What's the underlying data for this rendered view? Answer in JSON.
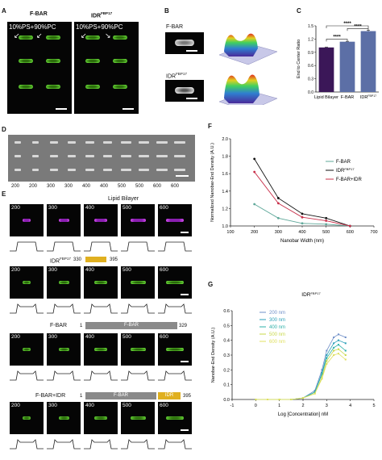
{
  "panels": {
    "A": "A",
    "B": "B",
    "C": "C",
    "D": "D",
    "E": "E",
    "F": "F",
    "G": "G"
  },
  "panelA": {
    "title_left": "F-BAR",
    "title_right": "IDR",
    "title_right_sup": "FBP17",
    "overlay_text": "10%PS+90%PC"
  },
  "panelB": {
    "label_top": "F-BAR",
    "label_bottom": "IDR",
    "label_bottom_sup": "FBP17"
  },
  "panelD": {
    "widths": [
      "200",
      "200",
      "300",
      "300",
      "400",
      "400",
      "500",
      "500",
      "600",
      "600"
    ]
  },
  "panelE": {
    "lipid_title": "Lipid Bilayer",
    "widths": [
      "200",
      "300",
      "400",
      "500",
      "600"
    ],
    "idr_label": "IDR",
    "idr_sup": "FBP17",
    "idr_start": "330",
    "idr_end": "395",
    "fbar_label": "F-BAR",
    "fbar_start": "1",
    "fbar_domain": "F-BAR",
    "fbar_end": "329",
    "combo_label": "F-BAR+IDR",
    "combo_start": "1",
    "combo_domain_fbar": "F-BAR",
    "combo_domain_idr": "IDR",
    "combo_end": "395"
  },
  "chart_data": [
    {
      "panel": "C",
      "type": "bar",
      "ylabel": "End to Center Ratio",
      "ylim": [
        0,
        1.5
      ],
      "yticks": [
        "0.0",
        "0.3",
        "0.6",
        "0.9",
        "1.2",
        "1.5"
      ],
      "categories": [
        "Lipid Bilayer",
        "F-BAR",
        "IDR"
      ],
      "category_sup": [
        "",
        "",
        "FBP17"
      ],
      "values": [
        1.01,
        1.14,
        1.38
      ],
      "errors": [
        0.01,
        0.01,
        0.02
      ],
      "colors": [
        "#3b1758",
        "#5c6fa6",
        "#5c6fa6"
      ],
      "significance": [
        "****",
        "****",
        "****"
      ]
    },
    {
      "panel": "F",
      "type": "line",
      "xlabel": "Nanobar Width (nm)",
      "ylabel": "Normalized Nanobar-End Density (A.U.)",
      "xlim": [
        100,
        700
      ],
      "ylim": [
        1.0,
        2.0
      ],
      "xticks": [
        "100",
        "200",
        "300",
        "400",
        "500",
        "600",
        "700"
      ],
      "yticks": [
        "1.0",
        "1.2",
        "1.4",
        "1.6",
        "1.8",
        "2.0"
      ],
      "x": [
        200,
        300,
        400,
        500,
        600
      ],
      "legend_position": "right",
      "series": [
        {
          "name": "F-BAR",
          "sup": "",
          "color": "#5fa89a",
          "values": [
            1.25,
            1.09,
            1.03,
            1.02,
            1.0
          ]
        },
        {
          "name": "IDR",
          "sup": "FBP17",
          "color": "#111111",
          "values": [
            1.77,
            1.32,
            1.14,
            1.09,
            1.0
          ]
        },
        {
          "name": "F-BAR+IDR",
          "sup": "",
          "color": "#c8304a",
          "values": [
            1.62,
            1.26,
            1.1,
            1.06,
            1.0
          ]
        }
      ]
    },
    {
      "panel": "G",
      "type": "line",
      "title": "IDR",
      "title_sup": "FBP17",
      "xlabel": "Log [Concentration] nM",
      "ylabel": "Nanobar-End Density (A.U.)",
      "xlim": [
        -1,
        5
      ],
      "ylim": [
        0,
        0.6
      ],
      "xticks": [
        "-1",
        "0",
        "1",
        "2",
        "3",
        "4",
        "5"
      ],
      "yticks": [
        "0.0",
        "0.1",
        "0.2",
        "0.3",
        "0.4",
        "0.5",
        "0.6"
      ],
      "x": [
        0,
        0.5,
        1,
        1.5,
        2,
        2.5,
        2.8,
        3,
        3.3,
        3.5,
        3.8
      ],
      "legend_position": "top-left",
      "series": [
        {
          "name": "200 nm",
          "color": "#6f8fc8",
          "values": [
            0,
            0,
            0,
            0,
            0.01,
            0.06,
            0.2,
            0.33,
            0.42,
            0.44,
            0.42
          ]
        },
        {
          "name": "300 nm",
          "color": "#2a9fb8",
          "values": [
            0,
            0,
            0,
            0,
            0.01,
            0.05,
            0.18,
            0.3,
            0.38,
            0.4,
            0.38
          ]
        },
        {
          "name": "400 nm",
          "color": "#2cb0a8",
          "values": [
            0,
            0,
            0,
            0,
            0.01,
            0.05,
            0.17,
            0.28,
            0.35,
            0.37,
            0.33
          ]
        },
        {
          "name": "500 nm",
          "color": "#c8d84a",
          "values": [
            0,
            0,
            0,
            0,
            0.01,
            0.04,
            0.15,
            0.26,
            0.33,
            0.34,
            0.3
          ]
        },
        {
          "name": "600 nm",
          "color": "#e0e060",
          "values": [
            0,
            0,
            0,
            0,
            0.01,
            0.04,
            0.14,
            0.24,
            0.3,
            0.31,
            0.27
          ]
        }
      ]
    }
  ]
}
